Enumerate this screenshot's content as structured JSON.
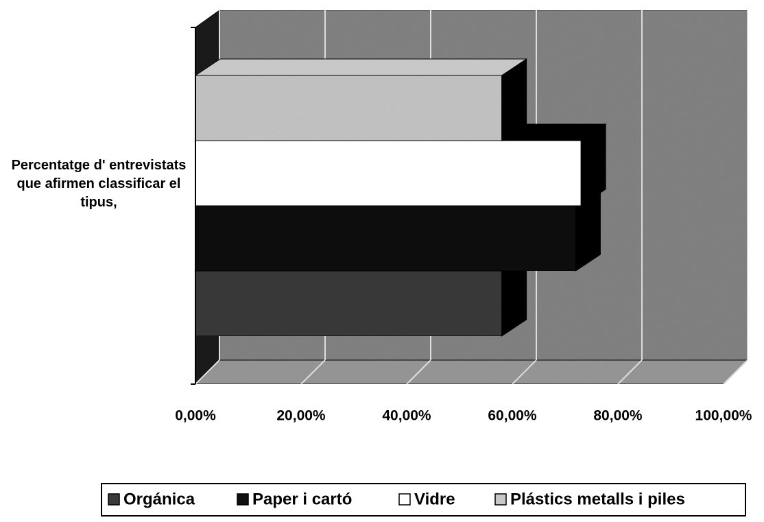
{
  "chart_data": {
    "type": "bar",
    "orientation": "horizontal",
    "categories": [
      "Percentatge d' entrevistats que afirmen classificar el tipus,"
    ],
    "series": [
      {
        "name": "Orgánica",
        "color": "#3a3a3a",
        "values": [
          58
        ]
      },
      {
        "name": "Paper i cartó",
        "color": "#101010",
        "values": [
          72
        ]
      },
      {
        "name": "Vidre",
        "color": "#ffffff",
        "values": [
          73
        ]
      },
      {
        "name": "Plástics metalls i piles",
        "color": "#c8c8c8",
        "values": [
          58
        ]
      }
    ],
    "xlim": [
      0,
      100
    ],
    "xticks": [
      {
        "value": 0,
        "label": "0,00%"
      },
      {
        "value": 20,
        "label": "20,00%"
      },
      {
        "value": 40,
        "label": "40,00%"
      },
      {
        "value": 60,
        "label": "60,00%"
      },
      {
        "value": 80,
        "label": "80,00%"
      },
      {
        "value": 100,
        "label": "100,00%"
      }
    ],
    "grid": true,
    "legend": "bottom"
  }
}
